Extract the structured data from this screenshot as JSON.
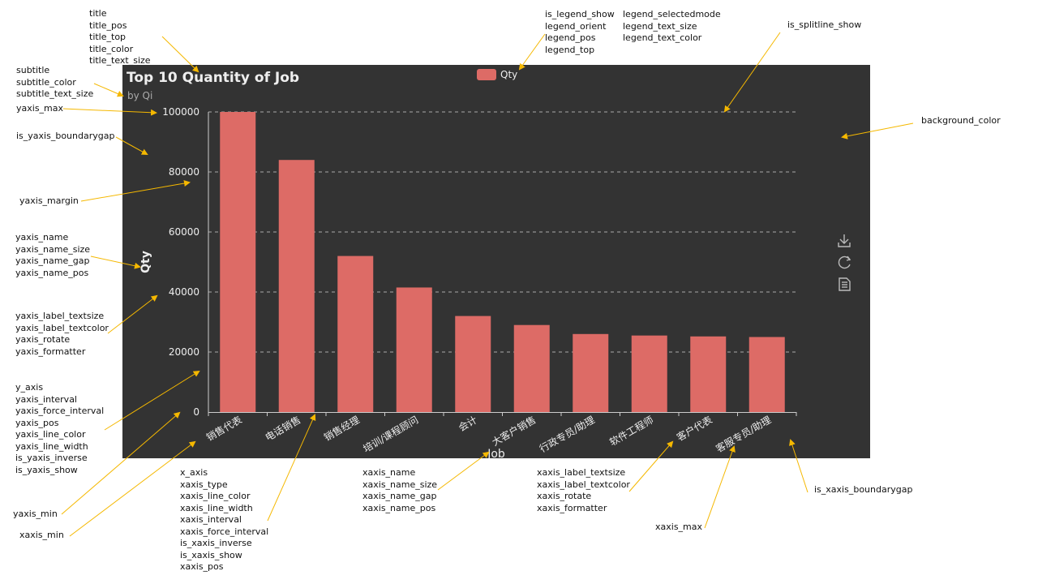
{
  "chart_data": {
    "type": "bar",
    "title": "Top 10 Quantity of Job",
    "subtitle": "by Qi",
    "legend": [
      "Qty"
    ],
    "xlabel": "Job",
    "ylabel": "Qty",
    "categories": [
      "销售代表",
      "电话销售",
      "销售经理",
      "培训/课程顾问",
      "会计",
      "大客户销售",
      "行政专员/助理",
      "软件工程师",
      "客户代表",
      "客服专员/助理"
    ],
    "series": [
      {
        "name": "Qty",
        "values": [
          100000,
          84000,
          52000,
          41500,
          32000,
          29000,
          26000,
          25500,
          25200,
          25000
        ]
      }
    ],
    "ylim": [
      0,
      100000
    ],
    "yticks": [
      "0",
      "20000",
      "40000",
      "60000",
      "80000",
      "100000"
    ],
    "grid": "horizontal dashed",
    "legend_position": "top-center",
    "colors": {
      "background": "#333333",
      "bar": "#dd6b66",
      "text": "#eeeeee",
      "axis": "#cccccc",
      "gridline": "#aaaaaa",
      "arrow": "#f5b800"
    }
  },
  "toolbox": {
    "icons": [
      "download-icon",
      "refresh-icon",
      "data-view-icon"
    ]
  },
  "notes": {
    "title": [
      "title",
      "title_pos",
      "title_top",
      "title_color",
      "title_text_size"
    ],
    "subtitle": [
      "subtitle",
      "subtitle_color",
      "subtitle_text_size"
    ],
    "yaxis_max": [
      "yaxis_max"
    ],
    "yaxis_boundarygap": [
      "is_yaxis_boundarygap"
    ],
    "yaxis_margin": [
      "yaxis_margin"
    ],
    "yaxis_name": [
      "yaxis_name",
      "yaxis_name_size",
      "yaxis_name_gap",
      "yaxis_name_pos"
    ],
    "yaxis_label": [
      "yaxis_label_textsize",
      "yaxis_label_textcolor",
      "yaxis_rotate",
      "yaxis_formatter"
    ],
    "y_axis": [
      "y_axis",
      "yaxis_interval",
      "yaxis_force_interval",
      "yaxis_pos",
      "yaxis_line_color",
      "yaxis_line_width",
      "is_yaxis_inverse",
      "is_yaxis_show"
    ],
    "yaxis_min": [
      "yaxis_min"
    ],
    "xaxis_min": [
      "xaxis_min"
    ],
    "x_axis": [
      "x_axis",
      "xaxis_type",
      "xaxis_line_color",
      "xaxis_line_width",
      "xaxis_interval",
      "xaxis_force_interval",
      "is_xaxis_inverse",
      "is_xaxis_show",
      "xaxis_pos"
    ],
    "xaxis_name": [
      "xaxis_name",
      "xaxis_name_size",
      "xaxis_name_gap",
      "xaxis_name_pos"
    ],
    "xaxis_label": [
      "xaxis_label_textsize",
      "xaxis_label_textcolor",
      "xaxis_rotate",
      "xaxis_formatter"
    ],
    "xaxis_max": [
      "xaxis_max"
    ],
    "xaxis_boundarygap": [
      "is_xaxis_boundarygap"
    ],
    "legend_a": [
      "is_legend_show",
      "legend_orient",
      "legend_pos",
      "legend_top"
    ],
    "legend_b": [
      "legend_selectedmode",
      "legend_text_size",
      "legend_text_color"
    ],
    "splitline": [
      "is_splitline_show"
    ],
    "background": [
      "background_color"
    ]
  }
}
